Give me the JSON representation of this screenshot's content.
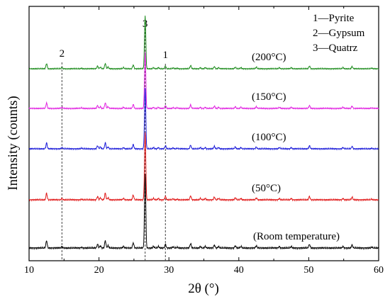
{
  "chart_data": {
    "type": "line",
    "title": "",
    "xlabel": "2θ (°)",
    "ylabel": "Intensity (counts)",
    "xlim": [
      10,
      60
    ],
    "xticks": [
      "10",
      "20",
      "30",
      "40",
      "50",
      "60"
    ],
    "grid": false,
    "legend": {
      "placement": "top-right",
      "entries": [
        "1—Pyrite",
        "2—Gypsum",
        "3—Quatrz"
      ]
    },
    "reference_lines": [
      {
        "label": "2",
        "x": 14.7
      },
      {
        "label": "3",
        "x": 26.6
      },
      {
        "label": "1",
        "x": 29.5
      }
    ],
    "peaks": [
      {
        "x": 12.5,
        "h": 0.1
      },
      {
        "x": 14.7,
        "h": 0.02
      },
      {
        "x": 17.5,
        "h": 0.01
      },
      {
        "x": 19.8,
        "h": 0.05
      },
      {
        "x": 20.2,
        "h": 0.03
      },
      {
        "x": 20.9,
        "h": 0.1
      },
      {
        "x": 21.3,
        "h": 0.03
      },
      {
        "x": 23.5,
        "h": 0.02
      },
      {
        "x": 24.9,
        "h": 0.07
      },
      {
        "x": 26.6,
        "h": 1.0
      },
      {
        "x": 27.8,
        "h": 0.02
      },
      {
        "x": 28.5,
        "h": 0.02
      },
      {
        "x": 29.5,
        "h": 0.05
      },
      {
        "x": 30.6,
        "h": 0.015
      },
      {
        "x": 31.2,
        "h": 0.01
      },
      {
        "x": 33.1,
        "h": 0.06
      },
      {
        "x": 34.5,
        "h": 0.02
      },
      {
        "x": 35.2,
        "h": 0.02
      },
      {
        "x": 36.5,
        "h": 0.04
      },
      {
        "x": 37.1,
        "h": 0.02
      },
      {
        "x": 39.5,
        "h": 0.03
      },
      {
        "x": 40.3,
        "h": 0.02
      },
      {
        "x": 42.5,
        "h": 0.03
      },
      {
        "x": 45.8,
        "h": 0.02
      },
      {
        "x": 47.5,
        "h": 0.02
      },
      {
        "x": 50.1,
        "h": 0.05
      },
      {
        "x": 54.9,
        "h": 0.02
      },
      {
        "x": 56.2,
        "h": 0.04
      },
      {
        "x": 59.0,
        "h": 0.01
      }
    ],
    "series": [
      {
        "name": "(200°C)",
        "color": "#1a8a1a",
        "peak_height": 0.4
      },
      {
        "name": "(150°C)",
        "color": "#e020e0",
        "peak_height": 0.42
      },
      {
        "name": "(100°C)",
        "color": "#1818d8",
        "peak_height": 0.45
      },
      {
        "name": "(50°C)",
        "color": "#e01818",
        "peak_height": 0.5
      },
      {
        "name": "(Room temperature)",
        "color": "#000000",
        "peak_height": 0.57
      }
    ]
  }
}
